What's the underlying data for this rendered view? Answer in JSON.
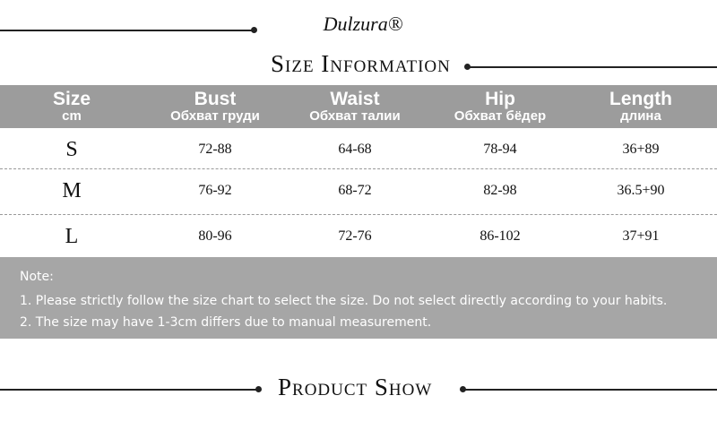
{
  "header": {
    "brand": "Dulzura®",
    "title": "Size Information"
  },
  "table": {
    "columns": [
      [
        "Size",
        "cm"
      ],
      [
        "Bust",
        "Обхват груди"
      ],
      [
        "Waist",
        "Обхват талии"
      ],
      [
        "Hip",
        "Обхват бёдер"
      ],
      [
        "Length",
        "длина"
      ]
    ],
    "rows": [
      [
        "S",
        "72-88",
        "64-68",
        "78-94",
        "36+89"
      ],
      [
        "M",
        "76-92",
        "68-72",
        "82-98",
        "36.5+90"
      ],
      [
        "L",
        "80-96",
        "72-76",
        "86-102",
        "37+91"
      ]
    ]
  },
  "note": {
    "label": "Note:",
    "lines": [
      "1. Please strictly follow the size chart to select the size. Do not select directly according to your habits.",
      "2. The size may have 1-3cm differs due to manual measurement."
    ]
  },
  "footer": {
    "title": "Product Show"
  }
}
